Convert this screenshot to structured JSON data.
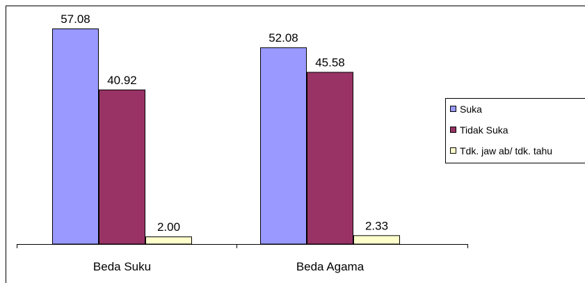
{
  "chart_data": {
    "type": "bar",
    "categories": [
      "Beda Suku",
      "Beda Agama"
    ],
    "series": [
      {
        "name": "Suka",
        "values": [
          57.08,
          52.08
        ],
        "color": "#9999ff"
      },
      {
        "name": "Tidak Suka",
        "values": [
          40.92,
          45.58
        ],
        "color": "#993366"
      },
      {
        "name": "Tdk. jaw ab/ tdk. tahu",
        "values": [
          2.0,
          2.33
        ],
        "color": "#ffffcc"
      }
    ],
    "value_labels": [
      [
        "57.08",
        "52.08"
      ],
      [
        "40.92",
        "45.58"
      ],
      [
        "2.00",
        "2.33"
      ]
    ],
    "title": "",
    "xlabel": "",
    "ylabel": "",
    "ylim": [
      0,
      57.08
    ],
    "grid": false,
    "legend_position": "right"
  }
}
